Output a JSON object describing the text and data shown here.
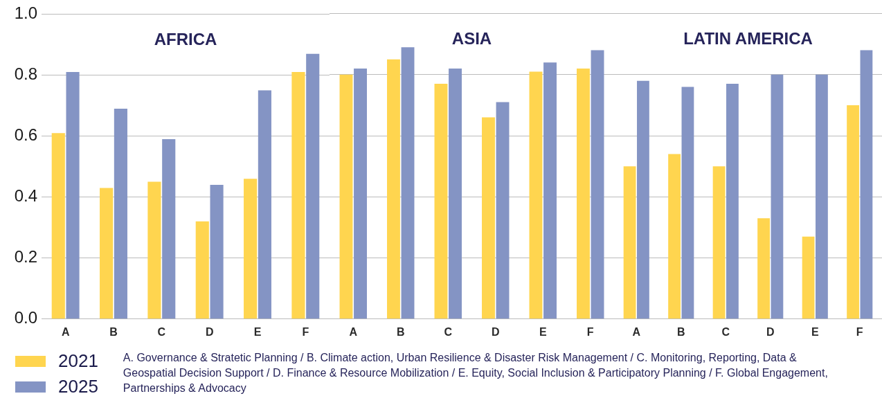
{
  "chart_data": [
    {
      "type": "bar",
      "title": "AFRICA",
      "categories": [
        "A",
        "B",
        "C",
        "D",
        "E",
        "F"
      ],
      "series": [
        {
          "name": "2021",
          "color": "#ffd54f",
          "values": [
            0.61,
            0.43,
            0.45,
            0.32,
            0.46,
            0.81
          ]
        },
        {
          "name": "2025",
          "color": "#8494c4",
          "values": [
            0.81,
            0.69,
            0.59,
            0.44,
            0.75,
            0.87
          ]
        }
      ],
      "ylim": [
        0,
        1
      ],
      "yticks": [
        {
          "value": 0,
          "label": "0.0"
        },
        {
          "value": 0.2,
          "label": "0.2"
        },
        {
          "value": 0.4,
          "label": "0.4"
        },
        {
          "value": 0.6,
          "label": "0.6"
        },
        {
          "value": 0.8,
          "label": "0.8"
        },
        {
          "value": 1,
          "label": "1.0"
        }
      ],
      "grid": "y",
      "legend": "bottom left",
      "annotations": [
        "A. Governance & Stratetic Planning  /  B. Climate action, Urban Resilience & Disaster Risk Management  /  C. Monitoring, Reporting, Data & Geospatial Decision Support  /  D. Finance & Resource Mobilization  /  E. Equity, Social Inclusion & Participatory Planning  /  F. Global Engagement, Partnerships & Advocacy"
      ]
    },
    {
      "type": "bar",
      "title": "ASIA",
      "categories": [
        "A",
        "B",
        "C",
        "D",
        "E",
        "F"
      ],
      "series": [
        {
          "color": "#ffd54f",
          "values": [
            0.8,
            0.85,
            0.77,
            0.66,
            0.81,
            0.82
          ]
        },
        {
          "color": "#8494c4",
          "values": [
            0.82,
            0.89,
            0.82,
            0.71,
            0.84,
            0.88
          ]
        }
      ],
      "ylim": [
        0,
        1
      ],
      "yticks": [
        0,
        0.2,
        0.4,
        0.6,
        0.8,
        1
      ],
      "grid": "y",
      "tick_labels": "x"
    },
    {
      "type": "bar",
      "title": "LATIN AMERICA",
      "categories": [
        "A",
        "B",
        "C",
        "D",
        "E",
        "F"
      ],
      "series": [
        {
          "color": "#ffd54f",
          "values": [
            0.5,
            0.54,
            0.5,
            0.33,
            0.27,
            0.7
          ]
        },
        {
          "color": "#8494c4",
          "values": [
            0.78,
            0.76,
            0.77,
            0.8,
            0.8,
            0.88
          ]
        }
      ],
      "ylim": [
        0,
        1
      ],
      "yticks": [
        0,
        0.2,
        0.4,
        0.6,
        0.8,
        1
      ],
      "grid": "y",
      "tick_labels": "x"
    }
  ]
}
